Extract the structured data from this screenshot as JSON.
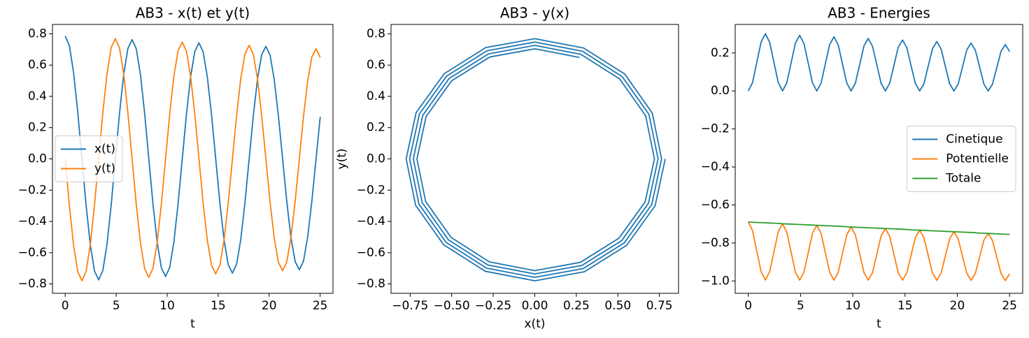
{
  "chart_data": [
    {
      "type": "line",
      "title": "AB3 - x(t) et y(t)",
      "xlabel": "t",
      "x": [
        0,
        0.41,
        0.82,
        1.23,
        1.64,
        2.05,
        2.46,
        2.87,
        3.28,
        3.69,
        4.1,
        4.51,
        4.92,
        5.33,
        5.74,
        6.15,
        6.56,
        6.97,
        7.38,
        7.79,
        8.2,
        8.61,
        9.02,
        9.43,
        9.84,
        10.25,
        10.66,
        11.07,
        11.48,
        11.89,
        12.3,
        12.71,
        13.12,
        13.53,
        13.94,
        14.35,
        14.76,
        15.17,
        15.58,
        15.99,
        16.4,
        16.81,
        17.22,
        17.63,
        18.04,
        18.45,
        18.86,
        19.27,
        19.68,
        20.09,
        20.5,
        20.91,
        21.32,
        21.73,
        22.14,
        22.55,
        22.96,
        23.37,
        23.78,
        24.19,
        24.6,
        25.01
      ],
      "series": [
        {
          "name": "x(t)",
          "color": "#1f77b4",
          "values": [
            0.785,
            0.724,
            0.553,
            0.299,
            0,
            -0.298,
            -0.549,
            -0.717,
            -0.774,
            -0.714,
            -0.545,
            -0.295,
            0,
            0.294,
            0.542,
            0.707,
            0.763,
            0.704,
            0.538,
            0.291,
            0,
            -0.29,
            -0.534,
            -0.697,
            -0.753,
            -0.694,
            -0.53,
            -0.287,
            0,
            0.286,
            0.526,
            0.687,
            0.742,
            0.684,
            0.523,
            0.283,
            0,
            -0.282,
            -0.519,
            -0.677,
            -0.731,
            -0.674,
            -0.515,
            -0.278,
            0,
            0.277,
            0.511,
            0.667,
            0.72,
            0.664,
            0.507,
            0.274,
            0,
            -0.273,
            -0.503,
            -0.657,
            -0.709,
            -0.654,
            -0.5,
            -0.27,
            0,
            0.269
          ]
        },
        {
          "name": "y(t)",
          "color": "#ff7f0e",
          "values": [
            0,
            -0.3,
            -0.553,
            -0.722,
            -0.78,
            -0.719,
            -0.549,
            -0.297,
            0,
            0.296,
            0.545,
            0.712,
            0.769,
            0.709,
            0.542,
            0.293,
            0,
            -0.292,
            -0.538,
            -0.702,
            -0.758,
            -0.699,
            -0.534,
            -0.289,
            0,
            0.288,
            0.53,
            0.692,
            0.747,
            0.689,
            0.526,
            0.285,
            0,
            -0.284,
            -0.523,
            -0.682,
            -0.736,
            -0.679,
            -0.519,
            -0.281,
            0,
            0.279,
            0.515,
            0.672,
            0.726,
            0.669,
            0.511,
            0.276,
            0,
            -0.275,
            -0.507,
            -0.662,
            -0.715,
            -0.659,
            -0.503,
            -0.272,
            0,
            0.271,
            0.5,
            0.652,
            0.704,
            0.649
          ]
        }
      ],
      "xlim": [
        -1.25,
        26.26
      ],
      "xticks": [
        0,
        5,
        10,
        15,
        20,
        25
      ],
      "ylim": [
        -0.86,
        0.86
      ],
      "yticks": [
        {
          "value": -0.8,
          "label": "−0.8"
        },
        {
          "value": -0.6,
          "label": "−0.6"
        },
        {
          "value": -0.4,
          "label": "−0.4"
        },
        {
          "value": -0.2,
          "label": "−0.2"
        },
        {
          "value": 0,
          "label": "0.0"
        },
        0.2,
        0.4,
        0.6,
        0.8
      ],
      "legend": "center left"
    },
    {
      "type": "line",
      "title": "AB3 - y(x)",
      "xlabel": "x(t)",
      "ylabel": "y(t)",
      "color": "#1f77b4",
      "x": [
        0.785,
        0.724,
        0.553,
        0.299,
        0,
        -0.298,
        -0.549,
        -0.717,
        -0.774,
        -0.714,
        -0.545,
        -0.295,
        0,
        0.294,
        0.542,
        0.707,
        0.763,
        0.704,
        0.538,
        0.291,
        0,
        -0.29,
        -0.534,
        -0.697,
        -0.753,
        -0.694,
        -0.53,
        -0.287,
        0,
        0.286,
        0.526,
        0.687,
        0.742,
        0.684,
        0.523,
        0.283,
        0,
        -0.282,
        -0.519,
        -0.677,
        -0.731,
        -0.674,
        -0.515,
        -0.278,
        0,
        0.277,
        0.511,
        0.667,
        0.72,
        0.664,
        0.507,
        0.274,
        0,
        -0.273,
        -0.503,
        -0.657,
        -0.709,
        -0.654,
        -0.5,
        -0.27,
        0,
        0.269
      ],
      "values": [
        0,
        -0.3,
        -0.553,
        -0.722,
        -0.78,
        -0.719,
        -0.549,
        -0.297,
        0,
        0.296,
        0.545,
        0.712,
        0.769,
        0.709,
        0.542,
        0.293,
        0,
        -0.292,
        -0.538,
        -0.702,
        -0.758,
        -0.699,
        -0.534,
        -0.289,
        0,
        0.288,
        0.53,
        0.692,
        0.747,
        0.689,
        0.526,
        0.285,
        0,
        -0.284,
        -0.523,
        -0.682,
        -0.736,
        -0.679,
        -0.519,
        -0.281,
        0,
        0.279,
        0.515,
        0.672,
        0.726,
        0.669,
        0.511,
        0.276,
        0,
        -0.275,
        -0.507,
        -0.662,
        -0.715,
        -0.659,
        -0.503,
        -0.272,
        0,
        0.271,
        0.5,
        0.652,
        0.704,
        0.649
      ],
      "xlim": [
        -0.865,
        0.865
      ],
      "xticks": [
        {
          "value": -0.75,
          "label": "−0.75"
        },
        {
          "value": -0.5,
          "label": "−0.50"
        },
        {
          "value": -0.25,
          "label": "−0.25"
        },
        {
          "value": 0,
          "label": "0.00"
        },
        0.25,
        {
          "value": 0.5,
          "label": "0.50"
        },
        0.75
      ],
      "ylim": [
        -0.86,
        0.86
      ],
      "yticks": [
        {
          "value": -0.8,
          "label": "−0.8"
        },
        {
          "value": -0.6,
          "label": "−0.6"
        },
        {
          "value": -0.4,
          "label": "−0.4"
        },
        {
          "value": -0.2,
          "label": "−0.2"
        },
        {
          "value": 0,
          "label": "0.0"
        },
        0.2,
        0.4,
        0.6,
        0.8
      ]
    },
    {
      "type": "line",
      "title": "AB3 - Energies",
      "xlabel": "t",
      "x": [
        0,
        0.41,
        0.82,
        1.23,
        1.64,
        2.05,
        2.46,
        2.87,
        3.28,
        3.69,
        4.1,
        4.51,
        4.92,
        5.33,
        5.74,
        6.15,
        6.56,
        6.97,
        7.38,
        7.79,
        8.2,
        8.61,
        9.02,
        9.43,
        9.84,
        10.25,
        10.66,
        11.07,
        11.48,
        11.89,
        12.3,
        12.71,
        13.12,
        13.53,
        13.94,
        14.35,
        14.76,
        15.17,
        15.58,
        15.99,
        16.4,
        16.81,
        17.22,
        17.63,
        18.04,
        18.45,
        18.86,
        19.27,
        19.68,
        20.09,
        20.5,
        20.91,
        21.32,
        21.73,
        22.14,
        22.55,
        22.96,
        23.37,
        23.78,
        24.19,
        24.6,
        25.01
      ],
      "series": [
        {
          "name": "Cinetique",
          "color": "#1f77b4",
          "values": [
            0,
            0.044,
            0.152,
            0.258,
            0.301,
            0.256,
            0.15,
            0.044,
            0,
            0.043,
            0.148,
            0.251,
            0.293,
            0.249,
            0.146,
            0.042,
            0,
            0.042,
            0.144,
            0.244,
            0.285,
            0.242,
            0.141,
            0.041,
            0,
            0.041,
            0.139,
            0.237,
            0.276,
            0.235,
            0.137,
            0.04,
            0,
            0.04,
            0.135,
            0.23,
            0.268,
            0.228,
            0.133,
            0.039,
            0,
            0.038,
            0.131,
            0.223,
            0.26,
            0.221,
            0.129,
            0.038,
            0,
            0.037,
            0.127,
            0.216,
            0.252,
            0.214,
            0.125,
            0.036,
            0,
            0.036,
            0.123,
            0.209,
            0.244,
            0.207
          ]
        },
        {
          "name": "Potentielle",
          "color": "#ff7f0e",
          "values": [
            -0.69,
            -0.735,
            -0.844,
            -0.951,
            -0.995,
            -0.951,
            -0.846,
            -0.741,
            -0.699,
            -0.743,
            -0.849,
            -0.953,
            -0.996,
            -0.953,
            -0.851,
            -0.748,
            -0.707,
            -0.75,
            -0.853,
            -0.954,
            -0.996,
            -0.954,
            -0.854,
            -0.756,
            -0.716,
            -0.758,
            -0.857,
            -0.956,
            -0.996,
            -0.956,
            -0.859,
            -0.763,
            -0.724,
            -0.765,
            -0.861,
            -0.957,
            -0.996,
            -0.957,
            -0.864,
            -0.771,
            -0.733,
            -0.772,
            -0.866,
            -0.959,
            -0.997,
            -0.959,
            -0.868,
            -0.778,
            -0.741,
            -0.779,
            -0.87,
            -0.96,
            -0.997,
            -0.96,
            -0.873,
            -0.785,
            -0.75,
            -0.787,
            -0.875,
            -0.962,
            -0.998,
            -0.962
          ]
        },
        {
          "name": "Totale",
          "color": "#2ca02c",
          "values": [
            -0.69,
            -0.691,
            -0.692,
            -0.693,
            -0.694,
            -0.695,
            -0.696,
            -0.697,
            -0.699,
            -0.7,
            -0.701,
            -0.702,
            -0.703,
            -0.704,
            -0.705,
            -0.706,
            -0.707,
            -0.708,
            -0.709,
            -0.71,
            -0.711,
            -0.712,
            -0.713,
            -0.715,
            -0.716,
            -0.717,
            -0.718,
            -0.719,
            -0.72,
            -0.721,
            -0.722,
            -0.723,
            -0.724,
            -0.725,
            -0.726,
            -0.727,
            -0.728,
            -0.729,
            -0.731,
            -0.732,
            -0.733,
            -0.734,
            -0.735,
            -0.736,
            -0.737,
            -0.738,
            -0.739,
            -0.74,
            -0.741,
            -0.742,
            -0.743,
            -0.744,
            -0.745,
            -0.746,
            -0.748,
            -0.749,
            -0.75,
            -0.751,
            -0.752,
            -0.753,
            -0.754,
            -0.755
          ]
        }
      ],
      "xlim": [
        -1.25,
        26.26
      ],
      "xticks": [
        0,
        5,
        10,
        15,
        20,
        25
      ],
      "ylim": [
        -1.065,
        0.35
      ],
      "yticks": [
        {
          "value": -1.0,
          "label": "−1.0"
        },
        {
          "value": -0.8,
          "label": "−0.8"
        },
        {
          "value": -0.6,
          "label": "−0.6"
        },
        {
          "value": -0.4,
          "label": "−0.4"
        },
        {
          "value": -0.2,
          "label": "−0.2"
        },
        {
          "value": 0,
          "label": "0.0"
        },
        0.2
      ],
      "legend": "center right"
    }
  ]
}
